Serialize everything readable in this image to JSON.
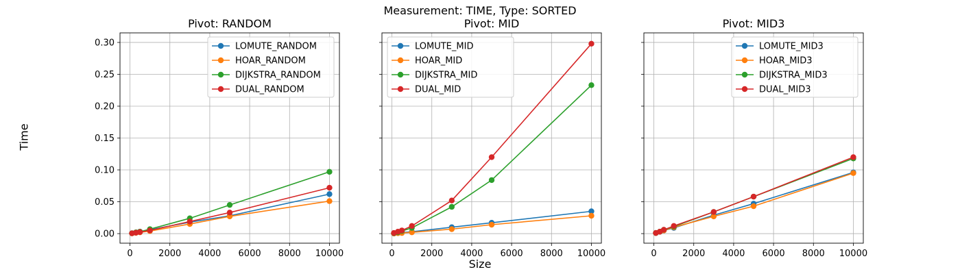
{
  "figure": {
    "suptitle": "Measurement: TIME, Type: SORTED",
    "xlabel": "Size",
    "ylabel": "Time"
  },
  "colors": {
    "series": [
      "#1f77b4",
      "#ff7f0e",
      "#2ca02c",
      "#d62728"
    ],
    "grid": "#b0b0b0",
    "axes": "#000000"
  },
  "chart_data": [
    {
      "type": "line",
      "title": "Pivot: RANDOM",
      "x": [
        100,
        300,
        500,
        1000,
        3000,
        5000,
        10000
      ],
      "xlim": [
        -500,
        10500
      ],
      "ylim": [
        -0.015,
        0.315
      ],
      "xticks": [
        0,
        2000,
        4000,
        6000,
        8000,
        10000
      ],
      "yticks": [
        0.0,
        0.05,
        0.1,
        0.15,
        0.2,
        0.25,
        0.3
      ],
      "xtick_labels": [
        "0",
        "2000",
        "4000",
        "6000",
        "8000",
        "10000"
      ],
      "ytick_labels": [
        "0.00",
        "0.05",
        "0.10",
        "0.15",
        "0.20",
        "0.25",
        "0.30"
      ],
      "show_ytick_labels": true,
      "grid": true,
      "legend_position": "top-right",
      "series": [
        {
          "name": "LOMUTE_RANDOM",
          "values": [
            0.0005,
            0.0015,
            0.003,
            0.006,
            0.018,
            0.028,
            0.062
          ]
        },
        {
          "name": "HOAR_RANDOM",
          "values": [
            0.0004,
            0.0012,
            0.002,
            0.004,
            0.015,
            0.027,
            0.051
          ]
        },
        {
          "name": "DIJKSTRA_RANDOM",
          "values": [
            0.0006,
            0.002,
            0.003,
            0.007,
            0.024,
            0.045,
            0.097
          ]
        },
        {
          "name": "DUAL_RANDOM",
          "values": [
            0.0005,
            0.0015,
            0.0025,
            0.005,
            0.019,
            0.033,
            0.072
          ]
        }
      ]
    },
    {
      "type": "line",
      "title": "Pivot: MID",
      "x": [
        100,
        300,
        500,
        1000,
        3000,
        5000,
        10000
      ],
      "xlim": [
        -500,
        10500
      ],
      "ylim": [
        -0.015,
        0.315
      ],
      "xticks": [
        0,
        2000,
        4000,
        6000,
        8000,
        10000
      ],
      "yticks": [
        0.0,
        0.05,
        0.1,
        0.15,
        0.2,
        0.25,
        0.3
      ],
      "xtick_labels": [
        "0",
        "2000",
        "4000",
        "6000",
        "8000",
        "10000"
      ],
      "ytick_labels": [
        "0.00",
        "0.05",
        "0.10",
        "0.15",
        "0.20",
        "0.25",
        "0.30"
      ],
      "show_ytick_labels": false,
      "grid": true,
      "legend_position": "top-left",
      "series": [
        {
          "name": "LOMUTE_MID",
          "values": [
            0.0003,
            0.001,
            0.0015,
            0.003,
            0.01,
            0.017,
            0.035
          ]
        },
        {
          "name": "HOAR_MID",
          "values": [
            0.0002,
            0.0007,
            0.001,
            0.002,
            0.007,
            0.014,
            0.028
          ]
        },
        {
          "name": "DIJKSTRA_MID",
          "values": [
            0.0005,
            0.002,
            0.004,
            0.009,
            0.042,
            0.084,
            0.233
          ]
        },
        {
          "name": "DUAL_MID",
          "values": [
            0.001,
            0.003,
            0.005,
            0.012,
            0.052,
            0.12,
            0.298
          ]
        }
      ]
    },
    {
      "type": "line",
      "title": "Pivot: MID3",
      "x": [
        100,
        300,
        500,
        1000,
        3000,
        5000,
        10000
      ],
      "xlim": [
        -500,
        10500
      ],
      "ylim": [
        -0.015,
        0.315
      ],
      "xticks": [
        0,
        2000,
        4000,
        6000,
        8000,
        10000
      ],
      "yticks": [
        0.0,
        0.05,
        0.1,
        0.15,
        0.2,
        0.25,
        0.3
      ],
      "xtick_labels": [
        "0",
        "2000",
        "4000",
        "6000",
        "8000",
        "10000"
      ],
      "ytick_labels": [
        "0.00",
        "0.05",
        "0.10",
        "0.15",
        "0.20",
        "0.25",
        "0.30"
      ],
      "show_ytick_labels": false,
      "grid": true,
      "legend_position": "top-right",
      "series": [
        {
          "name": "LOMUTE_MID3",
          "values": [
            0.001,
            0.003,
            0.005,
            0.009,
            0.029,
            0.047,
            0.096
          ]
        },
        {
          "name": "HOAR_MID3",
          "values": [
            0.001,
            0.003,
            0.005,
            0.01,
            0.027,
            0.043,
            0.095
          ]
        },
        {
          "name": "DIJKSTRA_MID3",
          "values": [
            0.001,
            0.003,
            0.006,
            0.011,
            0.034,
            0.058,
            0.118
          ]
        },
        {
          "name": "DUAL_MID3",
          "values": [
            0.001,
            0.003,
            0.006,
            0.012,
            0.034,
            0.058,
            0.12
          ]
        }
      ]
    }
  ]
}
